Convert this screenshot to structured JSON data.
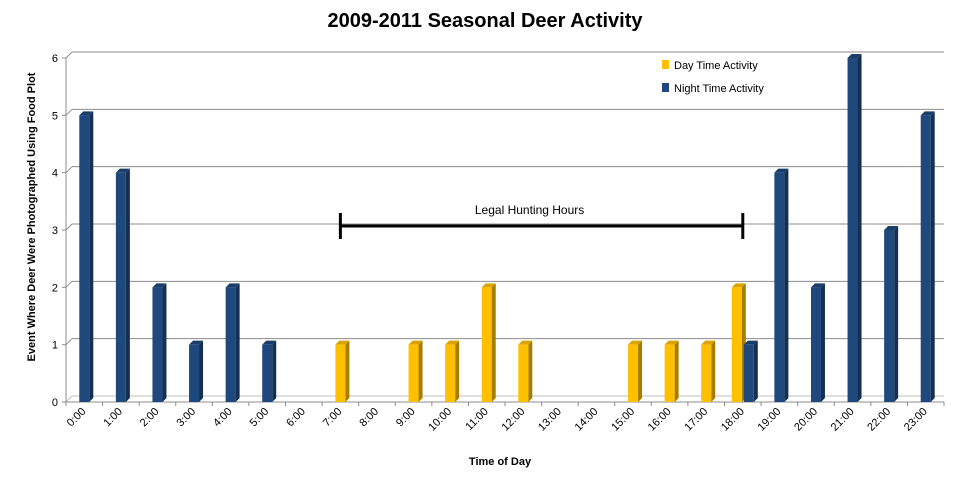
{
  "chart_data": {
    "type": "bar",
    "title": "2009-2011 Seasonal Deer Activity",
    "xlabel": "Time of Day",
    "ylabel": "Event Where Deer Were Photographed Using Food Plot",
    "ylim": [
      0,
      6
    ],
    "yticks": [
      "0",
      "1",
      "2",
      "3",
      "4",
      "5",
      "6"
    ],
    "grid": true,
    "legend_position": "top-right",
    "categories": [
      "0:00",
      "1:00",
      "2:00",
      "3:00",
      "4:00",
      "5:00",
      "6:00",
      "7:00",
      "8:00",
      "9:00",
      "10:00",
      "11:00",
      "12:00",
      "13:00",
      "14:00",
      "15:00",
      "16:00",
      "17:00",
      "18:00",
      "19:00",
      "20:00",
      "21:00",
      "22:00",
      "23:00"
    ],
    "series": [
      {
        "name": "Day Time Activity",
        "color": "#FFC000",
        "values": [
          0,
          0,
          0,
          0,
          0,
          0,
          0,
          1,
          0,
          1,
          1,
          2,
          1,
          0,
          0,
          1,
          1,
          1,
          2,
          0,
          0,
          0,
          0,
          0
        ]
      },
      {
        "name": "Night Time Activity",
        "color": "#1F497D",
        "values": [
          5,
          4,
          2,
          1,
          2,
          1,
          0,
          0,
          0,
          0,
          0,
          0,
          0,
          0,
          0,
          0,
          0,
          0,
          1,
          4,
          2,
          6,
          3,
          5
        ]
      }
    ],
    "annotation": {
      "label": "Legal Hunting Hours",
      "from": "7:00",
      "to": "18:00"
    }
  }
}
